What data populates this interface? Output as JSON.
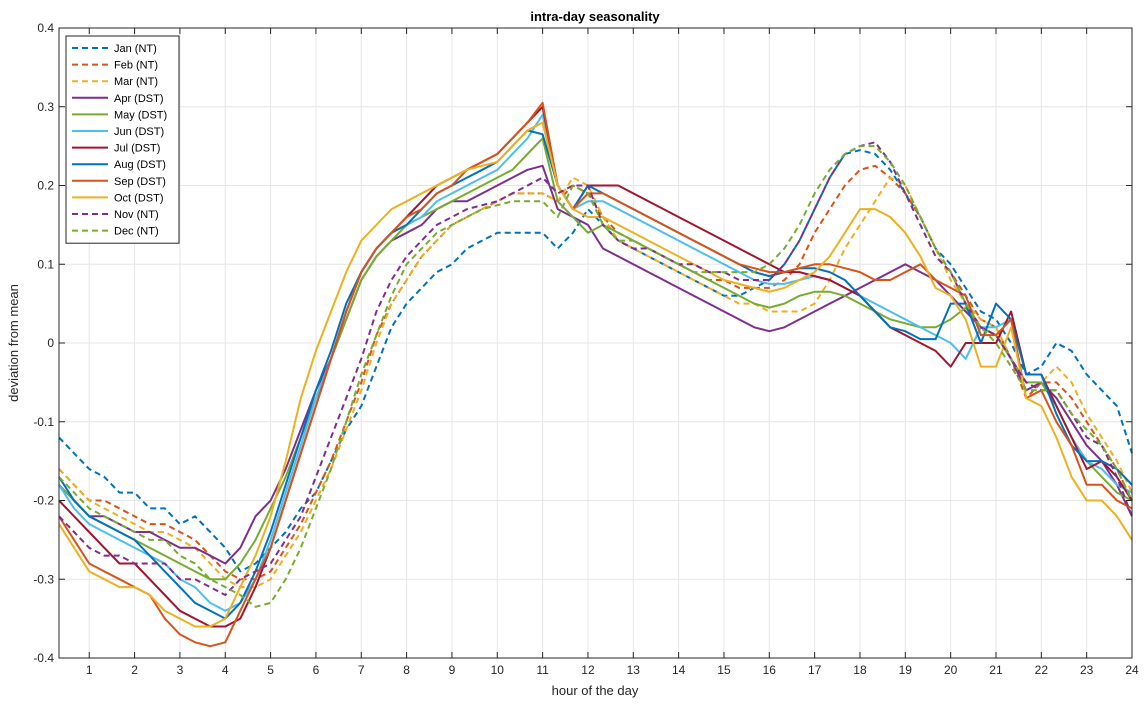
{
  "chart_data": {
    "type": "line",
    "title": "intra-day seasonality",
    "xlabel": "hour of the day",
    "ylabel": "deviation from mean",
    "xlim": [
      0.333,
      24
    ],
    "ylim": [
      -0.4,
      0.4
    ],
    "xticks": [
      1,
      2,
      3,
      4,
      5,
      6,
      7,
      8,
      9,
      10,
      11,
      12,
      13,
      14,
      15,
      16,
      17,
      18,
      19,
      20,
      21,
      22,
      23,
      24
    ],
    "xtick_labels": [
      "1",
      "2",
      "3",
      "4",
      "5",
      "6",
      "7",
      "8",
      "9",
      "10",
      "11",
      "12",
      "13",
      "14",
      "15",
      "16",
      "17",
      "18",
      "19",
      "20",
      "21",
      "22",
      "23",
      "24"
    ],
    "yticks": [
      -0.4,
      -0.3,
      -0.2,
      -0.1,
      0,
      0.1,
      0.2,
      0.3,
      0.4
    ],
    "ytick_labels": [
      "-0.4",
      "-0.3",
      "-0.2",
      "-0.1",
      "0",
      "0.1",
      "0.2",
      "0.3",
      "0.4"
    ],
    "grid": true,
    "legend_position": "top-left",
    "x": [
      0.333,
      0.667,
      1,
      1.333,
      1.667,
      2,
      2.333,
      2.667,
      3,
      3.333,
      3.667,
      4,
      4.333,
      4.667,
      5,
      5.333,
      5.667,
      6,
      6.333,
      6.667,
      7,
      7.333,
      7.667,
      8,
      8.333,
      8.667,
      9,
      9.333,
      9.667,
      10,
      10.333,
      10.667,
      11,
      11.333,
      11.667,
      12,
      12.333,
      12.667,
      13,
      13.333,
      13.667,
      14,
      14.333,
      14.667,
      15,
      15.333,
      15.667,
      16,
      16.333,
      16.667,
      17,
      17.333,
      17.667,
      18,
      18.333,
      18.667,
      19,
      19.333,
      19.667,
      20,
      20.333,
      20.667,
      21,
      21.333,
      21.667,
      22,
      22.333,
      22.667,
      23,
      23.333,
      23.667,
      24
    ],
    "series": [
      {
        "name": "Jan (NT)",
        "color": "#0072BD",
        "style": "dashed",
        "values": [
          -0.12,
          -0.14,
          -0.16,
          -0.17,
          -0.19,
          -0.19,
          -0.21,
          -0.21,
          -0.23,
          -0.22,
          -0.24,
          -0.26,
          -0.29,
          -0.28,
          -0.26,
          -0.24,
          -0.21,
          -0.19,
          -0.15,
          -0.11,
          -0.08,
          -0.03,
          0.02,
          0.05,
          0.07,
          0.09,
          0.1,
          0.12,
          0.13,
          0.14,
          0.14,
          0.14,
          0.14,
          0.12,
          0.14,
          0.17,
          0.15,
          0.13,
          0.12,
          0.11,
          0.1,
          0.09,
          0.08,
          0.07,
          0.06,
          0.06,
          0.07,
          0.08,
          0.1,
          0.13,
          0.17,
          0.21,
          0.24,
          0.245,
          0.24,
          0.22,
          0.19,
          0.16,
          0.12,
          0.1,
          0.07,
          0.04,
          0.03,
          0.0,
          -0.04,
          -0.03,
          0.0,
          -0.01,
          -0.04,
          -0.06,
          -0.08,
          -0.14
        ]
      },
      {
        "name": "Feb (NT)",
        "color": "#D95319",
        "style": "dashed",
        "values": [
          -0.16,
          -0.18,
          -0.2,
          -0.2,
          -0.21,
          -0.22,
          -0.23,
          -0.23,
          -0.24,
          -0.25,
          -0.27,
          -0.29,
          -0.3,
          -0.3,
          -0.29,
          -0.26,
          -0.23,
          -0.19,
          -0.15,
          -0.1,
          -0.05,
          0.01,
          0.05,
          0.08,
          0.11,
          0.13,
          0.15,
          0.16,
          0.17,
          0.18,
          0.19,
          0.19,
          0.19,
          0.18,
          0.2,
          0.19,
          0.16,
          0.14,
          0.13,
          0.12,
          0.11,
          0.1,
          0.09,
          0.08,
          0.08,
          0.07,
          0.07,
          0.07,
          0.08,
          0.1,
          0.14,
          0.17,
          0.2,
          0.22,
          0.225,
          0.21,
          0.19,
          0.16,
          0.12,
          0.09,
          0.06,
          0.03,
          0.02,
          -0.02,
          -0.07,
          -0.05,
          -0.05,
          -0.07,
          -0.1,
          -0.13,
          -0.16,
          -0.2
        ]
      },
      {
        "name": "Mar (NT)",
        "color": "#EDB120",
        "style": "dashed",
        "values": [
          -0.16,
          -0.18,
          -0.2,
          -0.21,
          -0.22,
          -0.23,
          -0.24,
          -0.24,
          -0.25,
          -0.26,
          -0.28,
          -0.3,
          -0.31,
          -0.31,
          -0.3,
          -0.27,
          -0.24,
          -0.2,
          -0.16,
          -0.11,
          -0.06,
          0.0,
          0.05,
          0.08,
          0.11,
          0.13,
          0.15,
          0.16,
          0.17,
          0.18,
          0.19,
          0.19,
          0.19,
          0.18,
          0.21,
          0.2,
          0.16,
          0.13,
          0.12,
          0.11,
          0.1,
          0.09,
          0.08,
          0.07,
          0.06,
          0.05,
          0.05,
          0.04,
          0.04,
          0.04,
          0.05,
          0.08,
          0.12,
          0.15,
          0.18,
          0.21,
          0.2,
          0.16,
          0.12,
          0.08,
          0.05,
          0.03,
          0.02,
          -0.02,
          -0.06,
          -0.05,
          -0.03,
          -0.05,
          -0.09,
          -0.12,
          -0.15,
          -0.19
        ]
      },
      {
        "name": "Apr (DST)",
        "color": "#7E2F8E",
        "style": "solid",
        "values": [
          -0.18,
          -0.2,
          -0.22,
          -0.22,
          -0.23,
          -0.24,
          -0.24,
          -0.25,
          -0.26,
          -0.26,
          -0.27,
          -0.28,
          -0.26,
          -0.22,
          -0.2,
          -0.16,
          -0.11,
          -0.06,
          -0.02,
          0.03,
          0.08,
          0.11,
          0.13,
          0.14,
          0.15,
          0.17,
          0.18,
          0.18,
          0.19,
          0.2,
          0.21,
          0.22,
          0.225,
          0.17,
          0.16,
          0.15,
          0.12,
          0.11,
          0.1,
          0.09,
          0.08,
          0.07,
          0.06,
          0.05,
          0.04,
          0.03,
          0.02,
          0.015,
          0.02,
          0.03,
          0.04,
          0.05,
          0.06,
          0.07,
          0.08,
          0.09,
          0.1,
          0.09,
          0.08,
          0.06,
          0.04,
          0.02,
          0.01,
          -0.02,
          -0.06,
          -0.05,
          -0.07,
          -0.1,
          -0.13,
          -0.15,
          -0.18,
          -0.22
        ]
      },
      {
        "name": "May (DST)",
        "color": "#77AC30",
        "style": "solid",
        "values": [
          -0.18,
          -0.2,
          -0.22,
          -0.23,
          -0.24,
          -0.25,
          -0.26,
          -0.27,
          -0.28,
          -0.29,
          -0.3,
          -0.3,
          -0.28,
          -0.25,
          -0.21,
          -0.17,
          -0.12,
          -0.07,
          -0.02,
          0.03,
          0.08,
          0.11,
          0.13,
          0.15,
          0.16,
          0.17,
          0.18,
          0.19,
          0.2,
          0.21,
          0.22,
          0.24,
          0.26,
          0.18,
          0.16,
          0.14,
          0.15,
          0.14,
          0.13,
          0.12,
          0.11,
          0.1,
          0.09,
          0.08,
          0.07,
          0.06,
          0.05,
          0.045,
          0.05,
          0.06,
          0.065,
          0.065,
          0.06,
          0.05,
          0.04,
          0.03,
          0.025,
          0.02,
          0.02,
          0.03,
          0.045,
          0.02,
          0.01,
          -0.02,
          -0.05,
          -0.05,
          -0.08,
          -0.12,
          -0.15,
          -0.17,
          -0.19,
          -0.2
        ]
      },
      {
        "name": "Jun (DST)",
        "color": "#4DBEEE",
        "style": "solid",
        "values": [
          -0.18,
          -0.21,
          -0.23,
          -0.24,
          -0.25,
          -0.26,
          -0.27,
          -0.28,
          -0.3,
          -0.31,
          -0.33,
          -0.34,
          -0.33,
          -0.3,
          -0.25,
          -0.19,
          -0.13,
          -0.07,
          -0.02,
          0.04,
          0.09,
          0.12,
          0.14,
          0.15,
          0.16,
          0.18,
          0.19,
          0.2,
          0.21,
          0.22,
          0.24,
          0.26,
          0.29,
          0.2,
          0.17,
          0.18,
          0.18,
          0.17,
          0.16,
          0.15,
          0.14,
          0.13,
          0.12,
          0.11,
          0.1,
          0.09,
          0.08,
          0.075,
          0.075,
          0.08,
          0.085,
          0.08,
          0.07,
          0.06,
          0.05,
          0.04,
          0.03,
          0.02,
          0.01,
          0.0,
          -0.02,
          0.02,
          0.02,
          0.03,
          -0.04,
          -0.04,
          -0.08,
          -0.12,
          -0.15,
          -0.16,
          -0.18,
          -0.19
        ]
      },
      {
        "name": "Jul (DST)",
        "color": "#A2142F",
        "style": "solid",
        "values": [
          -0.2,
          -0.22,
          -0.24,
          -0.26,
          -0.28,
          -0.28,
          -0.3,
          -0.32,
          -0.34,
          -0.35,
          -0.36,
          -0.36,
          -0.35,
          -0.31,
          -0.26,
          -0.2,
          -0.14,
          -0.08,
          -0.02,
          0.04,
          0.09,
          0.12,
          0.14,
          0.16,
          0.18,
          0.2,
          0.21,
          0.22,
          0.23,
          0.24,
          0.26,
          0.28,
          0.3,
          0.2,
          0.17,
          0.2,
          0.2,
          0.2,
          0.19,
          0.18,
          0.17,
          0.16,
          0.15,
          0.14,
          0.13,
          0.12,
          0.11,
          0.1,
          0.09,
          0.09,
          0.085,
          0.08,
          0.07,
          0.06,
          0.04,
          0.02,
          0.01,
          0.0,
          -0.01,
          -0.03,
          0.0,
          0.0,
          0.0,
          0.04,
          -0.04,
          -0.04,
          -0.08,
          -0.12,
          -0.16,
          -0.15,
          -0.17,
          -0.2
        ]
      },
      {
        "name": "Aug (DST)",
        "color": "#0072BD",
        "style": "solid",
        "values": [
          -0.17,
          -0.2,
          -0.22,
          -0.23,
          -0.24,
          -0.25,
          -0.27,
          -0.29,
          -0.31,
          -0.33,
          -0.34,
          -0.35,
          -0.33,
          -0.29,
          -0.24,
          -0.18,
          -0.12,
          -0.06,
          -0.01,
          0.05,
          0.09,
          0.12,
          0.14,
          0.15,
          0.17,
          0.19,
          0.2,
          0.21,
          0.22,
          0.23,
          0.25,
          0.27,
          0.265,
          0.2,
          0.17,
          0.2,
          0.19,
          0.18,
          0.17,
          0.16,
          0.15,
          0.14,
          0.13,
          0.12,
          0.11,
          0.1,
          0.09,
          0.085,
          0.09,
          0.095,
          0.095,
          0.09,
          0.08,
          0.06,
          0.04,
          0.02,
          0.015,
          0.005,
          0.005,
          0.05,
          0.05,
          0.0,
          0.05,
          0.03,
          -0.04,
          -0.04,
          -0.09,
          -0.13,
          -0.15,
          -0.15,
          -0.16,
          -0.18
        ]
      },
      {
        "name": "Sep (DST)",
        "color": "#D95319",
        "style": "solid",
        "values": [
          -0.22,
          -0.25,
          -0.28,
          -0.29,
          -0.3,
          -0.31,
          -0.32,
          -0.35,
          -0.37,
          -0.38,
          -0.385,
          -0.38,
          -0.34,
          -0.3,
          -0.26,
          -0.2,
          -0.14,
          -0.08,
          -0.02,
          0.04,
          0.09,
          0.12,
          0.14,
          0.16,
          0.17,
          0.19,
          0.2,
          0.22,
          0.23,
          0.24,
          0.26,
          0.28,
          0.305,
          0.2,
          0.17,
          0.19,
          0.19,
          0.18,
          0.17,
          0.16,
          0.15,
          0.14,
          0.13,
          0.12,
          0.11,
          0.1,
          0.095,
          0.09,
          0.09,
          0.095,
          0.1,
          0.1,
          0.095,
          0.09,
          0.08,
          0.08,
          0.09,
          0.1,
          0.08,
          0.07,
          0.06,
          0.01,
          0.01,
          0.03,
          -0.07,
          -0.06,
          -0.1,
          -0.13,
          -0.18,
          -0.18,
          -0.2,
          -0.21
        ]
      },
      {
        "name": "Oct (DST)",
        "color": "#EDB120",
        "style": "solid",
        "values": [
          -0.23,
          -0.26,
          -0.29,
          -0.3,
          -0.31,
          -0.31,
          -0.32,
          -0.34,
          -0.35,
          -0.36,
          -0.36,
          -0.35,
          -0.31,
          -0.27,
          -0.22,
          -0.15,
          -0.07,
          -0.01,
          0.04,
          0.09,
          0.13,
          0.15,
          0.17,
          0.18,
          0.19,
          0.2,
          0.21,
          0.22,
          0.225,
          0.23,
          0.25,
          0.27,
          0.28,
          0.2,
          0.17,
          0.16,
          0.16,
          0.15,
          0.14,
          0.13,
          0.12,
          0.11,
          0.1,
          0.09,
          0.08,
          0.075,
          0.07,
          0.065,
          0.07,
          0.08,
          0.09,
          0.11,
          0.14,
          0.17,
          0.17,
          0.16,
          0.14,
          0.11,
          0.07,
          0.06,
          0.03,
          -0.03,
          -0.03,
          0.02,
          -0.07,
          -0.08,
          -0.12,
          -0.17,
          -0.2,
          -0.2,
          -0.22,
          -0.25
        ]
      },
      {
        "name": "Nov (NT)",
        "color": "#7E2F8E",
        "style": "dashed",
        "values": [
          -0.22,
          -0.24,
          -0.26,
          -0.27,
          -0.27,
          -0.28,
          -0.28,
          -0.28,
          -0.3,
          -0.3,
          -0.31,
          -0.32,
          -0.3,
          -0.29,
          -0.28,
          -0.25,
          -0.22,
          -0.17,
          -0.12,
          -0.07,
          -0.02,
          0.04,
          0.08,
          0.11,
          0.13,
          0.15,
          0.16,
          0.17,
          0.175,
          0.18,
          0.19,
          0.2,
          0.21,
          0.19,
          0.2,
          0.2,
          0.15,
          0.13,
          0.12,
          0.12,
          0.11,
          0.1,
          0.1,
          0.09,
          0.09,
          0.08,
          0.08,
          0.08,
          0.1,
          0.13,
          0.17,
          0.21,
          0.24,
          0.25,
          0.255,
          0.23,
          0.19,
          0.15,
          0.11,
          0.09,
          0.05,
          0.02,
          0.01,
          -0.02,
          -0.05,
          -0.06,
          -0.06,
          -0.09,
          -0.12,
          -0.13,
          -0.17,
          -0.22
        ]
      },
      {
        "name": "Dec (NT)",
        "color": "#77AC30",
        "style": "dashed",
        "values": [
          -0.17,
          -0.19,
          -0.21,
          -0.22,
          -0.23,
          -0.24,
          -0.25,
          -0.25,
          -0.27,
          -0.28,
          -0.3,
          -0.31,
          -0.32,
          -0.335,
          -0.33,
          -0.3,
          -0.26,
          -0.21,
          -0.16,
          -0.1,
          -0.04,
          0.01,
          0.06,
          0.1,
          0.12,
          0.14,
          0.15,
          0.16,
          0.17,
          0.175,
          0.18,
          0.18,
          0.18,
          0.16,
          0.2,
          0.19,
          0.15,
          0.13,
          0.13,
          0.12,
          0.11,
          0.1,
          0.09,
          0.09,
          0.09,
          0.09,
          0.09,
          0.1,
          0.12,
          0.15,
          0.19,
          0.22,
          0.24,
          0.25,
          0.25,
          0.23,
          0.2,
          0.16,
          0.12,
          0.09,
          0.05,
          0.02,
          0.0,
          -0.03,
          -0.06,
          -0.06,
          -0.06,
          -0.09,
          -0.11,
          -0.13,
          -0.16,
          -0.2
        ]
      }
    ]
  }
}
